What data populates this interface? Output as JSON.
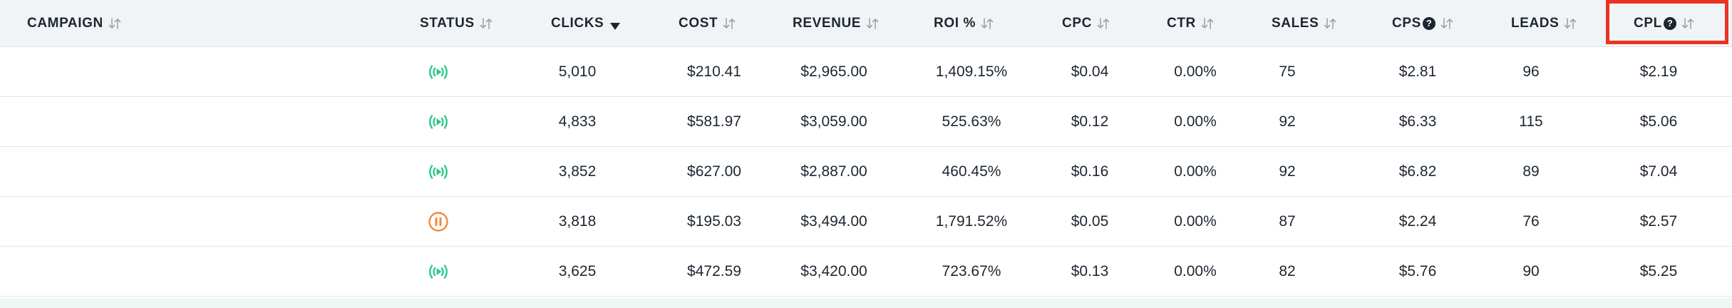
{
  "columns": [
    {
      "key": "campaign",
      "label": "CAMPAIGN",
      "sortable": true,
      "sorted": false,
      "help": false
    },
    {
      "key": "status",
      "label": "STATUS",
      "sortable": true,
      "sorted": false,
      "help": false
    },
    {
      "key": "clicks",
      "label": "CLICKS",
      "sortable": true,
      "sorted": true,
      "sort_direction": "descending",
      "help": false
    },
    {
      "key": "cost",
      "label": "COST",
      "sortable": true,
      "sorted": false,
      "help": false
    },
    {
      "key": "revenue",
      "label": "REVENUE",
      "sortable": true,
      "sorted": false,
      "help": false
    },
    {
      "key": "roi",
      "label": "ROI %",
      "sortable": true,
      "sorted": false,
      "help": false
    },
    {
      "key": "cpc",
      "label": "CPC",
      "sortable": true,
      "sorted": false,
      "help": false
    },
    {
      "key": "ctr",
      "label": "CTR",
      "sortable": true,
      "sorted": false,
      "help": false
    },
    {
      "key": "sales",
      "label": "SALES",
      "sortable": true,
      "sorted": false,
      "help": false
    },
    {
      "key": "cps",
      "label": "CPS",
      "sortable": true,
      "sorted": false,
      "help": true
    },
    {
      "key": "leads",
      "label": "LEADS",
      "sortable": true,
      "sorted": false,
      "help": false
    },
    {
      "key": "cpl",
      "label": "CPL",
      "sortable": true,
      "sorted": false,
      "help": true,
      "highlighted": true
    }
  ],
  "help_glyph": "?",
  "rows": [
    {
      "campaign": "",
      "status": "active",
      "clicks": "5,010",
      "cost": "$210.41",
      "revenue": "$2,965.00",
      "roi": "1,409.15%",
      "cpc": "$0.04",
      "ctr": "0.00%",
      "sales": "75",
      "cps": "$2.81",
      "leads": "96",
      "cpl": "$2.19"
    },
    {
      "campaign": "",
      "status": "active",
      "clicks": "4,833",
      "cost": "$581.97",
      "revenue": "$3,059.00",
      "roi": "525.63%",
      "cpc": "$0.12",
      "ctr": "0.00%",
      "sales": "92",
      "cps": "$6.33",
      "leads": "115",
      "cpl": "$5.06"
    },
    {
      "campaign": "",
      "status": "active",
      "clicks": "3,852",
      "cost": "$627.00",
      "revenue": "$2,887.00",
      "roi": "460.45%",
      "cpc": "$0.16",
      "ctr": "0.00%",
      "sales": "92",
      "cps": "$6.82",
      "leads": "89",
      "cpl": "$7.04"
    },
    {
      "campaign": "",
      "status": "paused",
      "clicks": "3,818",
      "cost": "$195.03",
      "revenue": "$3,494.00",
      "roi": "1,791.52%",
      "cpc": "$0.05",
      "ctr": "0.00%",
      "sales": "87",
      "cps": "$2.24",
      "leads": "76",
      "cpl": "$2.57"
    },
    {
      "campaign": "",
      "status": "active",
      "clicks": "3,625",
      "cost": "$472.59",
      "revenue": "$3,420.00",
      "roi": "723.67%",
      "cpc": "$0.13",
      "ctr": "0.00%",
      "sales": "82",
      "cps": "$5.76",
      "leads": "90",
      "cpl": "$5.25"
    }
  ],
  "colors": {
    "header_bg": "#f1f4f6",
    "header_text": "#1d2630",
    "sort_icon": "#9aa3ab",
    "status_active": "#2dc98a",
    "status_paused": "#f5883a",
    "highlight_border": "#ea3323",
    "footer_strip": "#eef5f3"
  },
  "icons": {
    "sort": "sort-arrows-icon",
    "sorted_desc": "caret-down-icon",
    "help": "question-circle-icon",
    "status_active": "broadcast-live-icon",
    "status_paused": "pause-circle-icon"
  }
}
